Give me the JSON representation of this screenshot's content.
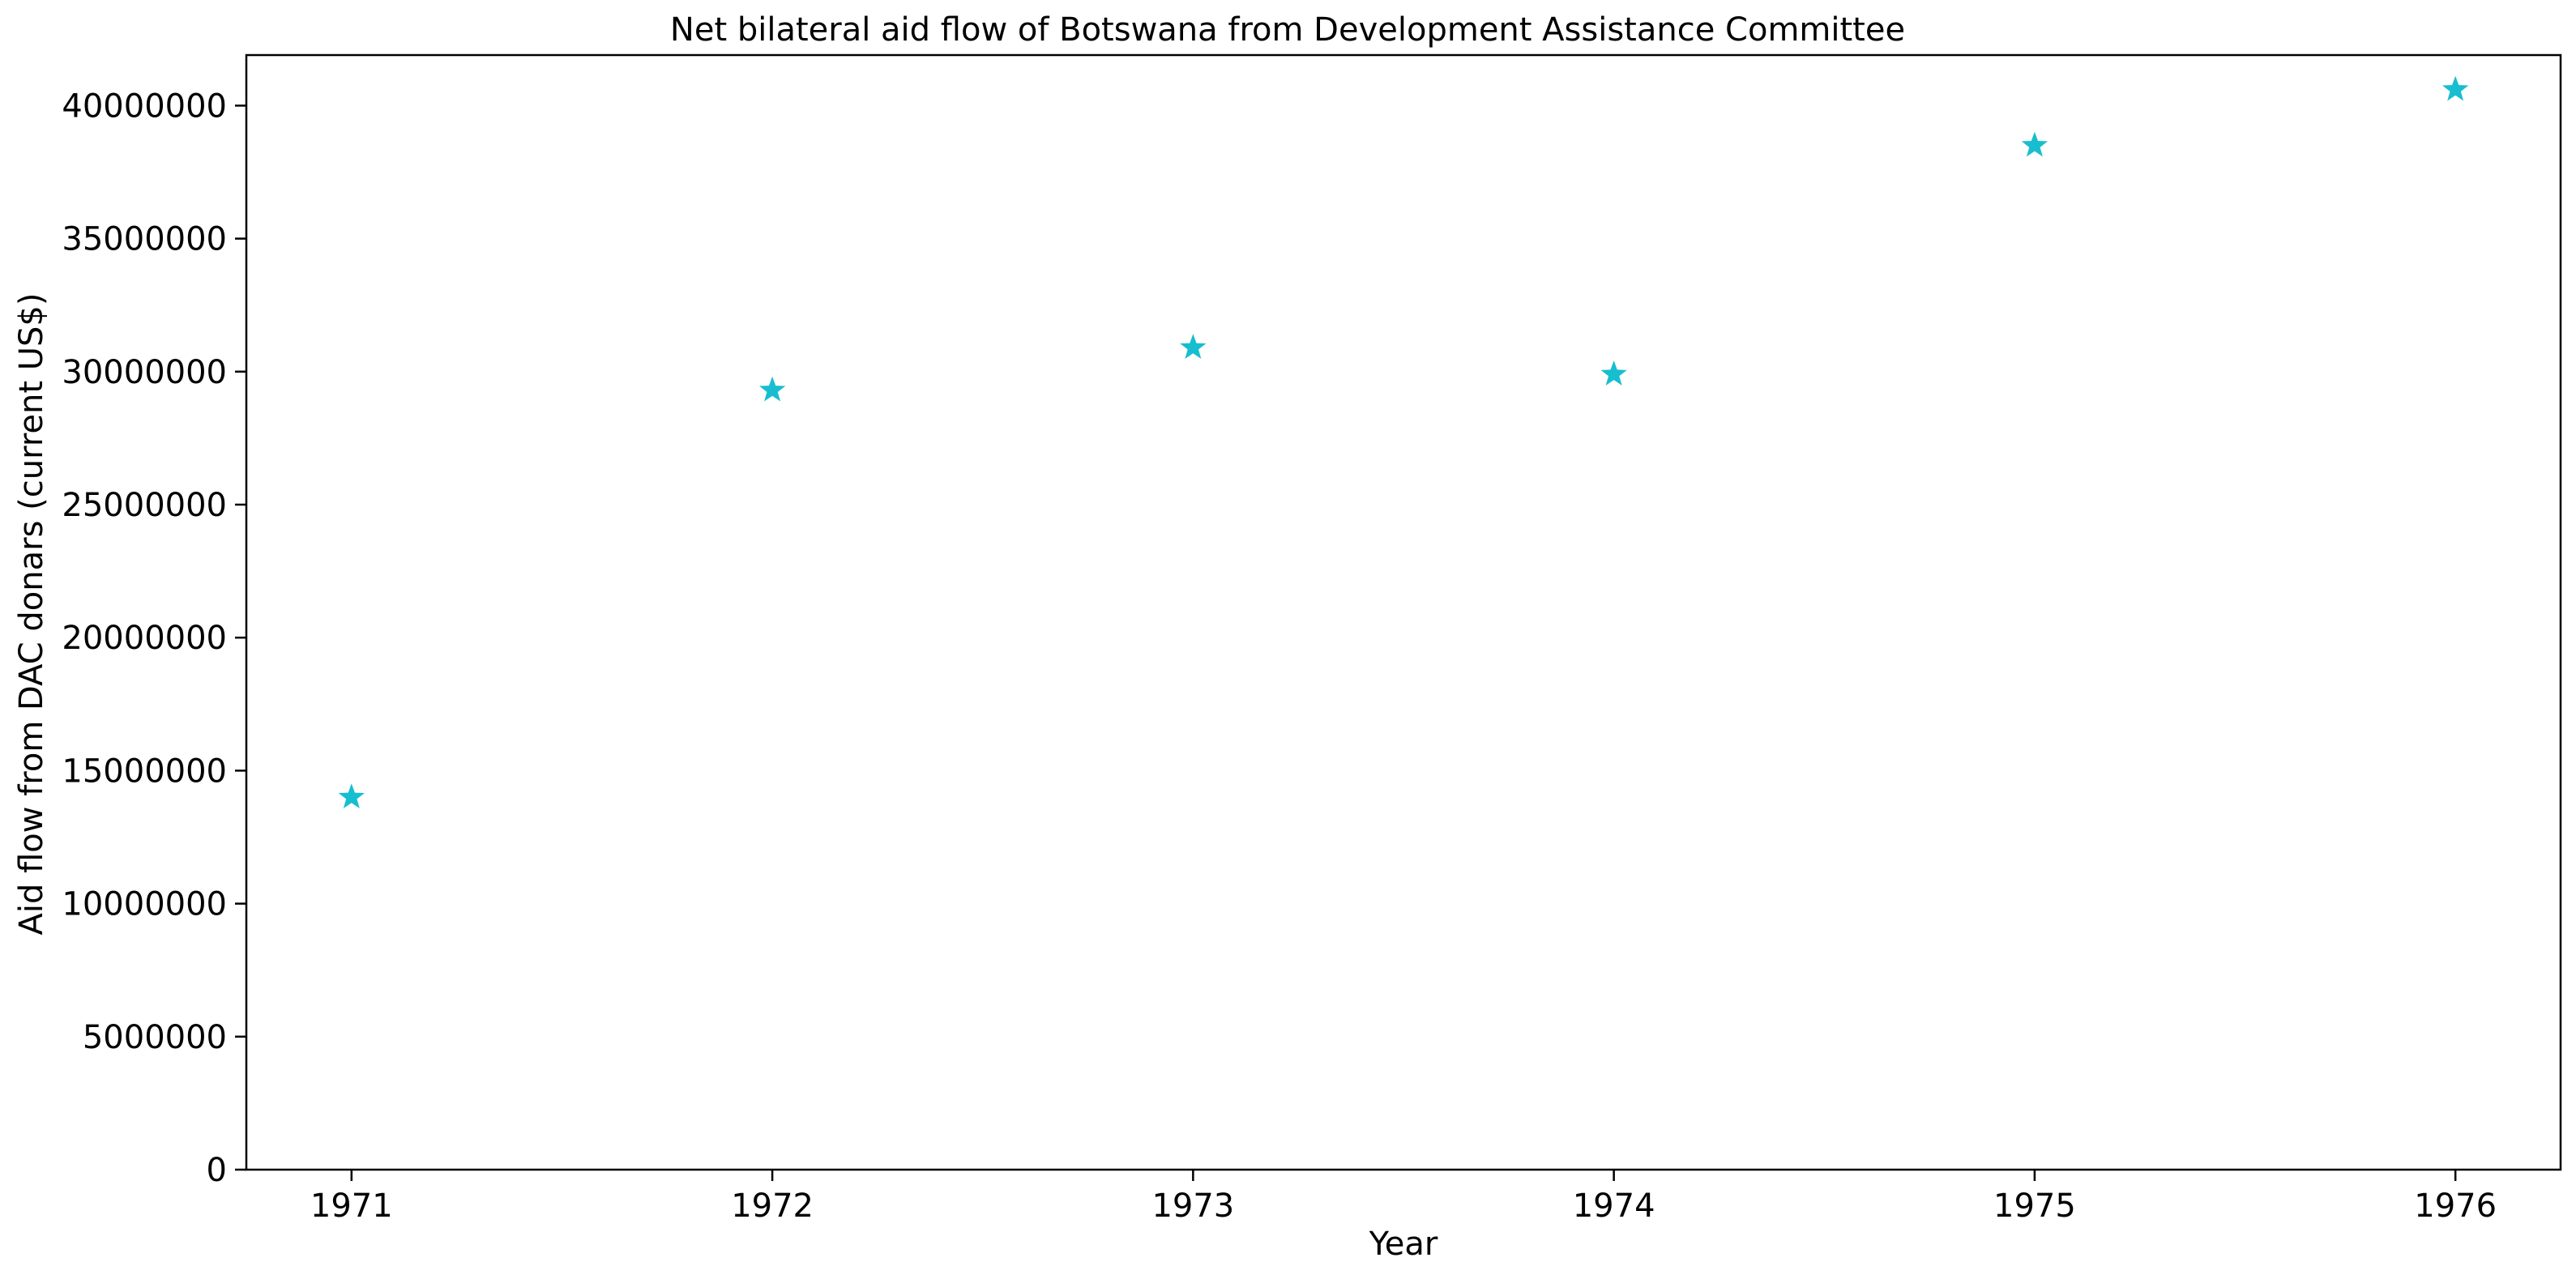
{
  "chart_data": {
    "type": "scatter",
    "title": "Net bilateral aid flow of Botswana from Development Assistance Committee",
    "xlabel": "Year",
    "ylabel": "Aid flow from DAC donars (current US$)",
    "x": [
      "1971",
      "1972",
      "1973",
      "1974",
      "1975",
      "1976"
    ],
    "series": [
      {
        "marker": "star",
        "color": "#17becf",
        "values": [
          14000000,
          29300000,
          30900000,
          29900000,
          38500000,
          40600000
        ]
      }
    ],
    "yticks": [
      0,
      5000000,
      10000000,
      15000000,
      20000000,
      25000000,
      30000000,
      35000000,
      40000000
    ],
    "ytick_labels": [
      "0",
      "5000000",
      "10000000",
      "15000000",
      "20000000",
      "25000000",
      "30000000",
      "35000000",
      "40000000"
    ],
    "ylim": [
      0,
      41900000
    ],
    "xlim": [
      1970.75,
      1976.25
    ],
    "grid": false,
    "legend": false
  }
}
